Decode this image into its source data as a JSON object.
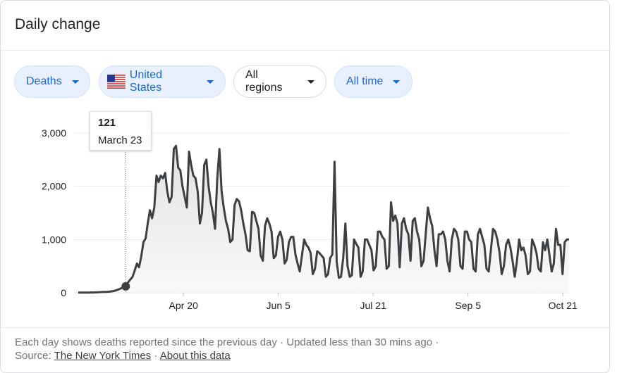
{
  "card": {
    "title": "Daily change"
  },
  "filters": {
    "metric": "Deaths",
    "country": "United States",
    "region": "All regions",
    "period": "All time"
  },
  "tooltip": {
    "value": "121",
    "date": "March 23"
  },
  "footer": {
    "note": "Each day shows deaths reported since the previous day",
    "separator": "·",
    "updated": "Updated less than 30 mins ago",
    "source_label": "Source:",
    "source_link": "The New York Times",
    "about_link": "About this data"
  },
  "colors": {
    "line": "#3c4043",
    "accent": "#1967d2",
    "chip_bg": "#e8f0fe"
  },
  "chart_data": {
    "type": "area",
    "x_start": "2020-02-29",
    "x_end": "2020-10-24",
    "ylim": [
      0,
      3000
    ],
    "yticks": [
      0,
      1000,
      2000,
      3000
    ],
    "ytick_labels": [
      "0",
      "1,000",
      "2,000",
      "3,000"
    ],
    "xticks": [
      {
        "date": "2020-04-20",
        "label": "Apr 20"
      },
      {
        "date": "2020-06-05",
        "label": "Jun 5"
      },
      {
        "date": "2020-07-21",
        "label": "Jul 21"
      },
      {
        "date": "2020-09-05",
        "label": "Sep 5"
      },
      {
        "date": "2020-10-21",
        "label": "Oct 21"
      }
    ],
    "grid": true,
    "highlight": {
      "date": "2020-03-23",
      "value": 121
    },
    "values": [
      5,
      2,
      3,
      2,
      2,
      4,
      6,
      5,
      8,
      10,
      12,
      14,
      15,
      16,
      20,
      25,
      32,
      40,
      55,
      70,
      90,
      110,
      121,
      200,
      250,
      300,
      420,
      550,
      480,
      680,
      950,
      1020,
      1300,
      1550,
      1400,
      1600,
      2200,
      2080,
      2200,
      2150,
      2250,
      1900,
      1700,
      1800,
      2700,
      2760,
      2350,
      2300,
      2000,
      1800,
      1600,
      2650,
      2400,
      2200,
      2150,
      1900,
      1300,
      1500,
      2400,
      2500,
      2000,
      1700,
      1500,
      1200,
      2150,
      2700,
      1900,
      1600,
      1350,
      1200,
      950,
      1000,
      1650,
      1760,
      1720,
      1550,
      1300,
      1100,
      800,
      780,
      1520,
      1500,
      1350,
      1200,
      700,
      600,
      1250,
      1400,
      1300,
      1150,
      650,
      700,
      1050,
      1150,
      1000,
      550,
      620,
      950,
      1050,
      1050,
      720,
      550,
      400,
      700,
      1000,
      900,
      850,
      750,
      350,
      450,
      780,
      750,
      700,
      650,
      300,
      350,
      650,
      720,
      2460,
      580,
      280,
      300,
      650,
      1300,
      500,
      300,
      330,
      1000,
      920,
      850,
      300,
      400,
      1000,
      1000,
      900,
      800,
      420,
      500,
      1150,
      1150,
      1050,
      1000,
      450,
      500,
      1700,
      1350,
      1450,
      1300,
      480,
      1300,
      1400,
      1200,
      1100,
      600,
      1350,
      1400,
      1150,
      1000,
      500,
      600,
      1100,
      1600,
      1400,
      1250,
      800,
      500,
      1100,
      1100,
      1150,
      1000,
      600,
      400,
      1000,
      1200,
      1150,
      1000,
      500,
      450,
      1150,
      1150,
      1000,
      950,
      450,
      400,
      1100,
      1200,
      1050,
      900,
      450,
      400,
      800,
      1200,
      1150,
      1000,
      750,
      350,
      500,
      900,
      1000,
      850,
      600,
      300,
      600,
      1000,
      800,
      850,
      700,
      350,
      400,
      1000,
      900,
      750,
      450,
      400,
      950,
      800,
      1000,
      700,
      400,
      550,
      1200,
      900,
      900,
      350,
      950,
      1000,
      1000
    ]
  }
}
